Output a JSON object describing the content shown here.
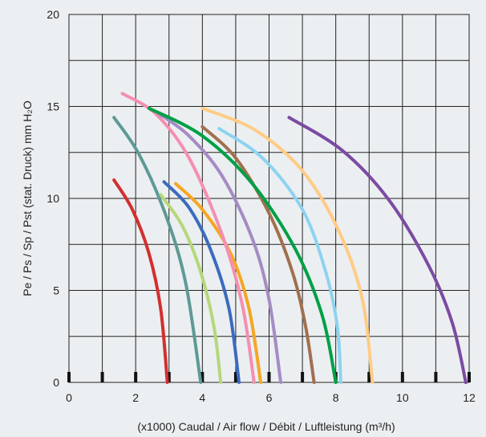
{
  "chart_data": {
    "type": "line",
    "xlabel": "(x1000) Caudal / Air flow / Débit / Luftleistung (m³/h)",
    "ylabel": "Pe / Ps / Sp / Pst (stat. Druck) mm H₂O",
    "xlim": [
      0,
      12
    ],
    "ylim": [
      0,
      20
    ],
    "x_ticks": [
      "0",
      "2",
      "4",
      "6",
      "8",
      "10",
      "12"
    ],
    "y_ticks": [
      "0",
      "5",
      "10",
      "15",
      "20"
    ],
    "grid": true,
    "background": "#eceff1",
    "series": [
      {
        "color": "#d32f2f",
        "points": [
          [
            1.35,
            11.0
          ],
          [
            1.9,
            9.4
          ],
          [
            2.4,
            7.0
          ],
          [
            2.75,
            4.0
          ],
          [
            2.95,
            0.0
          ]
        ]
      },
      {
        "color": "#5e9a96",
        "points": [
          [
            1.35,
            14.4
          ],
          [
            2.1,
            12.4
          ],
          [
            2.9,
            9.1
          ],
          [
            3.5,
            5.4
          ],
          [
            3.95,
            0.0
          ]
        ]
      },
      {
        "color": "#b5d77a",
        "points": [
          [
            2.75,
            10.2
          ],
          [
            3.4,
            8.5
          ],
          [
            3.95,
            6.0
          ],
          [
            4.35,
            3.0
          ],
          [
            4.55,
            0.0
          ]
        ]
      },
      {
        "color": "#3b6bbf",
        "points": [
          [
            2.85,
            10.9
          ],
          [
            3.6,
            9.5
          ],
          [
            4.25,
            7.2
          ],
          [
            4.8,
            4.0
          ],
          [
            5.1,
            0.0
          ]
        ]
      },
      {
        "color": "#f5a623",
        "points": [
          [
            3.2,
            10.8
          ],
          [
            4.0,
            9.4
          ],
          [
            4.85,
            7.0
          ],
          [
            5.4,
            4.0
          ],
          [
            5.75,
            0.0
          ]
        ]
      },
      {
        "color": "#f48fb1",
        "points": [
          [
            1.6,
            15.7
          ],
          [
            2.6,
            14.6
          ],
          [
            3.6,
            12.2
          ],
          [
            4.6,
            8.0
          ],
          [
            5.2,
            4.2
          ],
          [
            5.55,
            0.0
          ]
        ]
      },
      {
        "color": "#a58bc4",
        "points": [
          [
            2.7,
            14.6
          ],
          [
            3.6,
            13.4
          ],
          [
            4.6,
            11.2
          ],
          [
            5.5,
            7.8
          ],
          [
            6.0,
            4.5
          ],
          [
            6.35,
            0.0
          ]
        ]
      },
      {
        "color": "#a0704f",
        "points": [
          [
            4.0,
            13.9
          ],
          [
            5.0,
            12.2
          ],
          [
            6.0,
            9.2
          ],
          [
            6.7,
            6.0
          ],
          [
            7.1,
            3.0
          ],
          [
            7.35,
            0.0
          ]
        ]
      },
      {
        "color": "#00a046",
        "points": [
          [
            2.4,
            14.9
          ],
          [
            4.0,
            13.4
          ],
          [
            5.5,
            10.8
          ],
          [
            6.8,
            7.2
          ],
          [
            7.6,
            3.6
          ],
          [
            8.0,
            0.0
          ]
        ]
      },
      {
        "color": "#8dd3f0",
        "points": [
          [
            4.5,
            13.8
          ],
          [
            5.8,
            12.2
          ],
          [
            7.0,
            9.4
          ],
          [
            7.7,
            6.0
          ],
          [
            8.05,
            3.0
          ],
          [
            8.15,
            0.0
          ]
        ]
      },
      {
        "color": "#ffcb85",
        "points": [
          [
            4.0,
            14.9
          ],
          [
            5.6,
            13.7
          ],
          [
            7.0,
            11.5
          ],
          [
            8.1,
            8.2
          ],
          [
            8.8,
            4.5
          ],
          [
            9.1,
            0.0
          ]
        ]
      },
      {
        "color": "#7b4ba3",
        "points": [
          [
            6.6,
            14.4
          ],
          [
            8.2,
            12.6
          ],
          [
            9.6,
            9.9
          ],
          [
            10.8,
            6.3
          ],
          [
            11.5,
            3.2
          ],
          [
            11.9,
            0.0
          ]
        ]
      }
    ]
  }
}
